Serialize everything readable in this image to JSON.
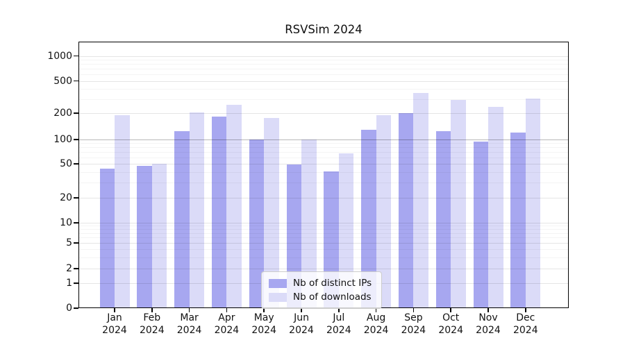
{
  "title": "RSVSim 2024",
  "chart_data": {
    "type": "bar",
    "title": "RSVSim 2024",
    "categories": [
      "Jan",
      "Feb",
      "Mar",
      "Apr",
      "May",
      "Jun",
      "Jul",
      "Aug",
      "Sep",
      "Oct",
      "Nov",
      "Dec"
    ],
    "x_year_label": "2024",
    "series": [
      {
        "name": "Nb of distinct IPs",
        "color": "#a7a7f0",
        "values": [
          44,
          47,
          124,
          185,
          100,
          49,
          41,
          130,
          202,
          125,
          95,
          120
        ]
      },
      {
        "name": "Nb of downloads",
        "color": "#dbdbf8",
        "values": [
          190,
          50,
          205,
          255,
          178,
          100,
          67,
          190,
          355,
          295,
          240,
          305
        ]
      }
    ],
    "yscale": "symlog",
    "ylim": [
      0,
      1270
    ],
    "yticks": [
      1000,
      500,
      200,
      100,
      50,
      20,
      10,
      5,
      2,
      1,
      0
    ],
    "ytick_labels": [
      "1000",
      "500",
      "200",
      "100",
      "50",
      "20",
      "10",
      "5",
      "2",
      "1",
      "0"
    ],
    "minor_ytick_values": [
      3,
      4,
      6,
      7,
      8,
      9,
      30,
      40,
      60,
      70,
      80,
      90,
      300,
      400,
      600,
      700,
      800,
      900
    ],
    "emphasized_gridline_value": 100,
    "grid": "horizontal",
    "legend_position": "lower center"
  },
  "legend": {
    "items": [
      {
        "label": "Nb of distinct IPs",
        "color": "#a7a7f0"
      },
      {
        "label": "Nb of downloads",
        "color": "#dbdbf8"
      }
    ]
  }
}
